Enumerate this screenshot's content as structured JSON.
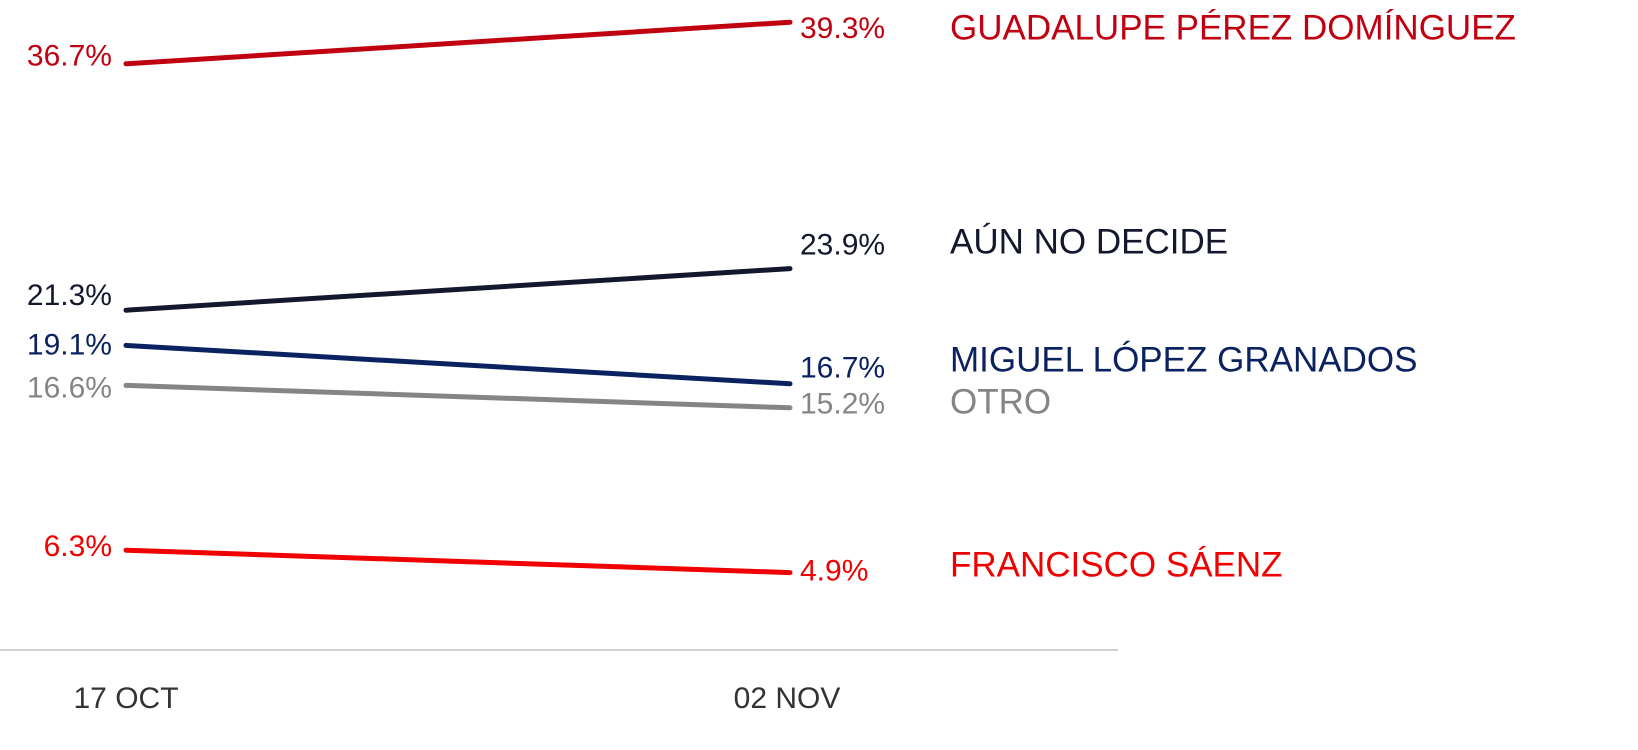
{
  "chart_data": {
    "type": "line",
    "categories": [
      "17 OCT",
      "02 NOV"
    ],
    "ylim": [
      0,
      40
    ],
    "series": [
      {
        "name": "GUADALUPE PÉREZ DOMÍNGUEZ",
        "color": "#c00010",
        "values": [
          36.7,
          39.3
        ],
        "value_labels": [
          "36.7%",
          "39.3%"
        ]
      },
      {
        "name": "AÚN NO DECIDE",
        "color": "#14182c",
        "values": [
          21.3,
          23.9
        ],
        "value_labels": [
          "21.3%",
          "23.9%"
        ]
      },
      {
        "name": "MIGUEL LÓPEZ GRANADOS",
        "color": "#0b2260",
        "values": [
          19.1,
          16.7
        ],
        "value_labels": [
          "19.1%",
          "16.7%"
        ]
      },
      {
        "name": "OTRO",
        "color": "#858585",
        "values": [
          16.6,
          15.2
        ],
        "value_labels": [
          "16.6%",
          "15.2%"
        ]
      },
      {
        "name": "FRANCISCO SÁENZ",
        "color": "#f00000",
        "values": [
          6.3,
          4.9
        ],
        "value_labels": [
          "6.3%",
          "4.9%"
        ]
      }
    ]
  }
}
